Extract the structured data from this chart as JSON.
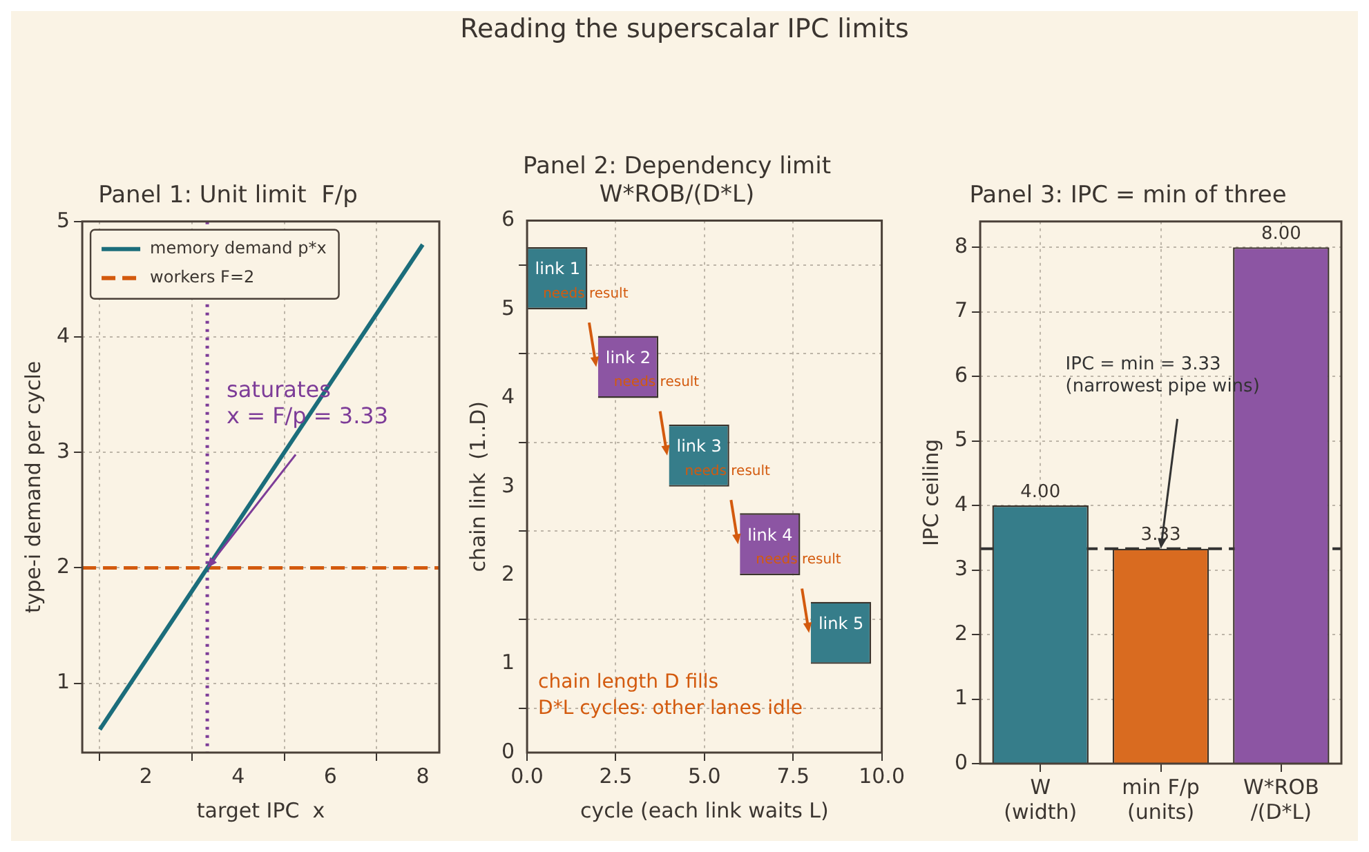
{
  "chart_data": [
    {
      "type": "line",
      "title": "Panel 1: Unit limit  F/p",
      "xlabel": "target IPC  x",
      "ylabel": "type-i demand per cycle",
      "series": [
        {
          "name": "memory demand p*x",
          "color": "#1b6d7b",
          "x": [
            1,
            8
          ],
          "values": [
            0.6,
            4.8
          ]
        }
      ],
      "ref_lines": [
        {
          "axis": "y",
          "value": 2,
          "label": "workers F=2",
          "color": "#d35a0e",
          "line_style": "dashed"
        },
        {
          "axis": "x",
          "value": 3.33,
          "color": "#7d3c98",
          "line_style": "dotted"
        }
      ],
      "annotations": [
        "Reading the superscalar IPC limits",
        {
          "text": "saturates\nx = F/p = 3.33",
          "x": 3.33,
          "y": 2
        }
      ],
      "xlim": [
        0.62,
        8.36
      ],
      "xticks": [
        2,
        4,
        6,
        8
      ],
      "ylim": [
        0.4,
        5
      ],
      "yticks": [
        1,
        2,
        3,
        4,
        5
      ],
      "grid": true,
      "legend": "top left",
      "marker": "none"
    },
    {
      "type": "bar",
      "orientation": "horizontal",
      "title": "Panel 2: Dependency limit\nW*ROB/(D*L)",
      "xlabel": "cycle (each link waits L)",
      "ylabel": "chain link  (1..D)",
      "x": [
        5.35,
        4.35,
        3.35,
        2.35,
        1.35
      ],
      "base": [
        0,
        2,
        4,
        6,
        8
      ],
      "values": [
        1.7,
        1.7,
        1.7,
        1.7,
        1.7
      ],
      "colors": [
        "#367d8a",
        "#8c55a3",
        "#367d8a",
        "#8c55a3",
        "#367d8a"
      ],
      "value_labels": [
        "link 1",
        "link 2",
        "link 3",
        "link 4",
        "link 5"
      ],
      "annotations": [
        {
          "text": "needs result",
          "x": 1.65,
          "y": 5.05
        },
        {
          "text": "needs result",
          "x": 3.65,
          "y": 4.05
        },
        {
          "text": "needs result",
          "x": 5.65,
          "y": 3.05
        },
        {
          "text": "needs result",
          "x": 7.65,
          "y": 2.05
        },
        "chain length D fills\nD*L cycles: other lanes idle"
      ],
      "xlim": [
        0,
        10
      ],
      "xticks": [
        {
          "value": 0,
          "label": "0.0"
        },
        {
          "value": 2.5,
          "label": "2.5"
        },
        {
          "value": 5,
          "label": "5.0"
        },
        {
          "value": 7.5,
          "label": "7.5"
        },
        {
          "value": 10,
          "label": "10.0"
        }
      ],
      "ylim": [
        0,
        6
      ],
      "yticks": [
        0,
        1,
        2,
        3,
        4,
        5,
        6
      ],
      "grid": true
    },
    {
      "type": "bar",
      "title": "Panel 3: IPC = min of three",
      "ylabel": "IPC ceiling",
      "categories": [
        "W\n(width)",
        "min F/p\n(units)",
        "W*ROB\n/(D*L)"
      ],
      "values": [
        4,
        3.33,
        8
      ],
      "colors": [
        "#367d8a",
        "#d96b20",
        "#8c55a3"
      ],
      "value_labels": [
        "4.00",
        "3.33",
        "8.00"
      ],
      "ref_lines": [
        {
          "axis": "y",
          "value": 3.33,
          "color": "#333333",
          "line_style": "dashed"
        }
      ],
      "annotations": [
        {
          "text": "IPC = min = 3.33\n(narrowest pipe wins)",
          "x": "min F/p\n(units)",
          "y": 3.33
        }
      ],
      "ylim": [
        0,
        8.4
      ],
      "yticks": [
        0,
        1,
        2,
        3,
        4,
        5,
        6,
        7,
        8
      ],
      "grid": true
    }
  ]
}
